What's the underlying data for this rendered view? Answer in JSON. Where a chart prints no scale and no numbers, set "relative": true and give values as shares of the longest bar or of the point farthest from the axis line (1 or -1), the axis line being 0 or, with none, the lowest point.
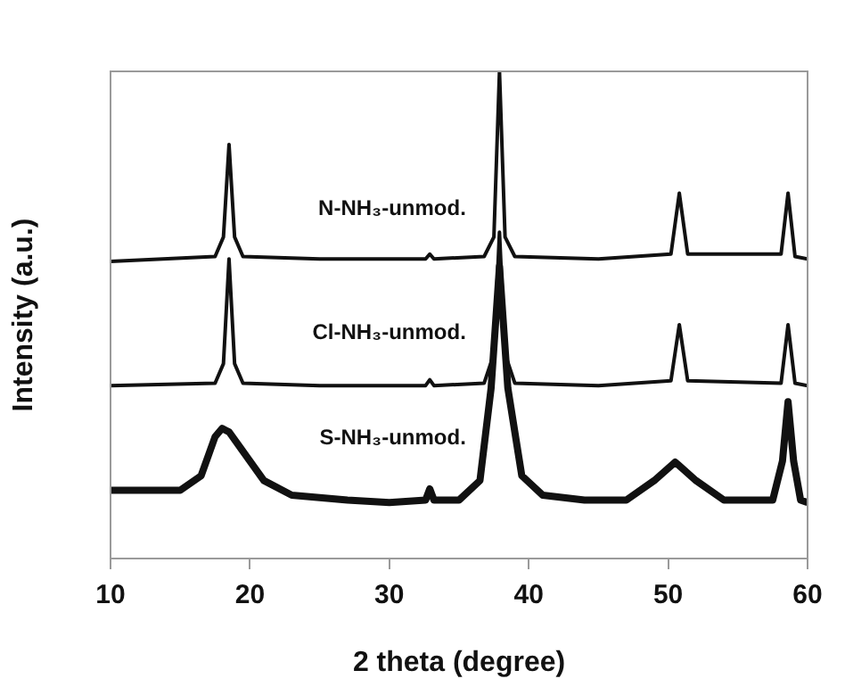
{
  "chart_data": {
    "type": "line",
    "xlabel": "2 theta (degree)",
    "ylabel": "Intensity (a.u.)",
    "relative": true,
    "xlim": [
      10,
      60
    ],
    "xticks": [
      10,
      20,
      30,
      40,
      50,
      60
    ],
    "grid": false,
    "legend": false,
    "marker": "none",
    "line_style": "solid",
    "series": [
      {
        "name": "N-NH₃-unmod.",
        "color": "#111111",
        "x": [
          10,
          17.5,
          18.1,
          18.5,
          18.9,
          19.5,
          25,
          32.6,
          32.9,
          33.2,
          36.8,
          37.5,
          37.9,
          38.3,
          39,
          45,
          50.2,
          50.8,
          51.4,
          58.1,
          58.6,
          59.1,
          60
        ],
        "values": [
          0.61,
          0.62,
          0.66,
          0.85,
          0.66,
          0.62,
          0.615,
          0.615,
          0.625,
          0.615,
          0.62,
          0.66,
          1,
          0.66,
          0.62,
          0.615,
          0.625,
          0.75,
          0.625,
          0.625,
          0.75,
          0.62,
          0.615
        ]
      },
      {
        "name": "Cl-NH₃-unmod.",
        "color": "#111111",
        "x": [
          10,
          17.5,
          18.1,
          18.5,
          18.9,
          19.5,
          25,
          32.6,
          32.9,
          33.2,
          36.8,
          37.5,
          37.9,
          38.3,
          39,
          45,
          50.2,
          50.8,
          51.4,
          58.1,
          58.6,
          59.1,
          60
        ],
        "values": [
          0.355,
          0.36,
          0.4,
          0.615,
          0.4,
          0.36,
          0.355,
          0.355,
          0.367,
          0.355,
          0.36,
          0.42,
          0.67,
          0.42,
          0.36,
          0.355,
          0.365,
          0.48,
          0.365,
          0.36,
          0.48,
          0.36,
          0.355
        ]
      },
      {
        "name": "S-NH₃-unmod.",
        "color": "#111111",
        "x": [
          10,
          12,
          15,
          16.5,
          17.5,
          18,
          18.5,
          19.5,
          21,
          23,
          27,
          30,
          32.6,
          32.9,
          33.2,
          35,
          36.5,
          37.3,
          37.9,
          38.5,
          39.5,
          41,
          44,
          47,
          49,
          50.5,
          52,
          54,
          57.5,
          58.2,
          58.6,
          59,
          59.5,
          60
        ],
        "values": [
          0.14,
          0.14,
          0.14,
          0.17,
          0.25,
          0.267,
          0.26,
          0.22,
          0.16,
          0.13,
          0.12,
          0.115,
          0.12,
          0.143,
          0.12,
          0.12,
          0.16,
          0.35,
          0.6,
          0.35,
          0.17,
          0.13,
          0.12,
          0.12,
          0.16,
          0.198,
          0.16,
          0.12,
          0.12,
          0.2,
          0.322,
          0.2,
          0.12,
          0.115
        ]
      }
    ]
  }
}
